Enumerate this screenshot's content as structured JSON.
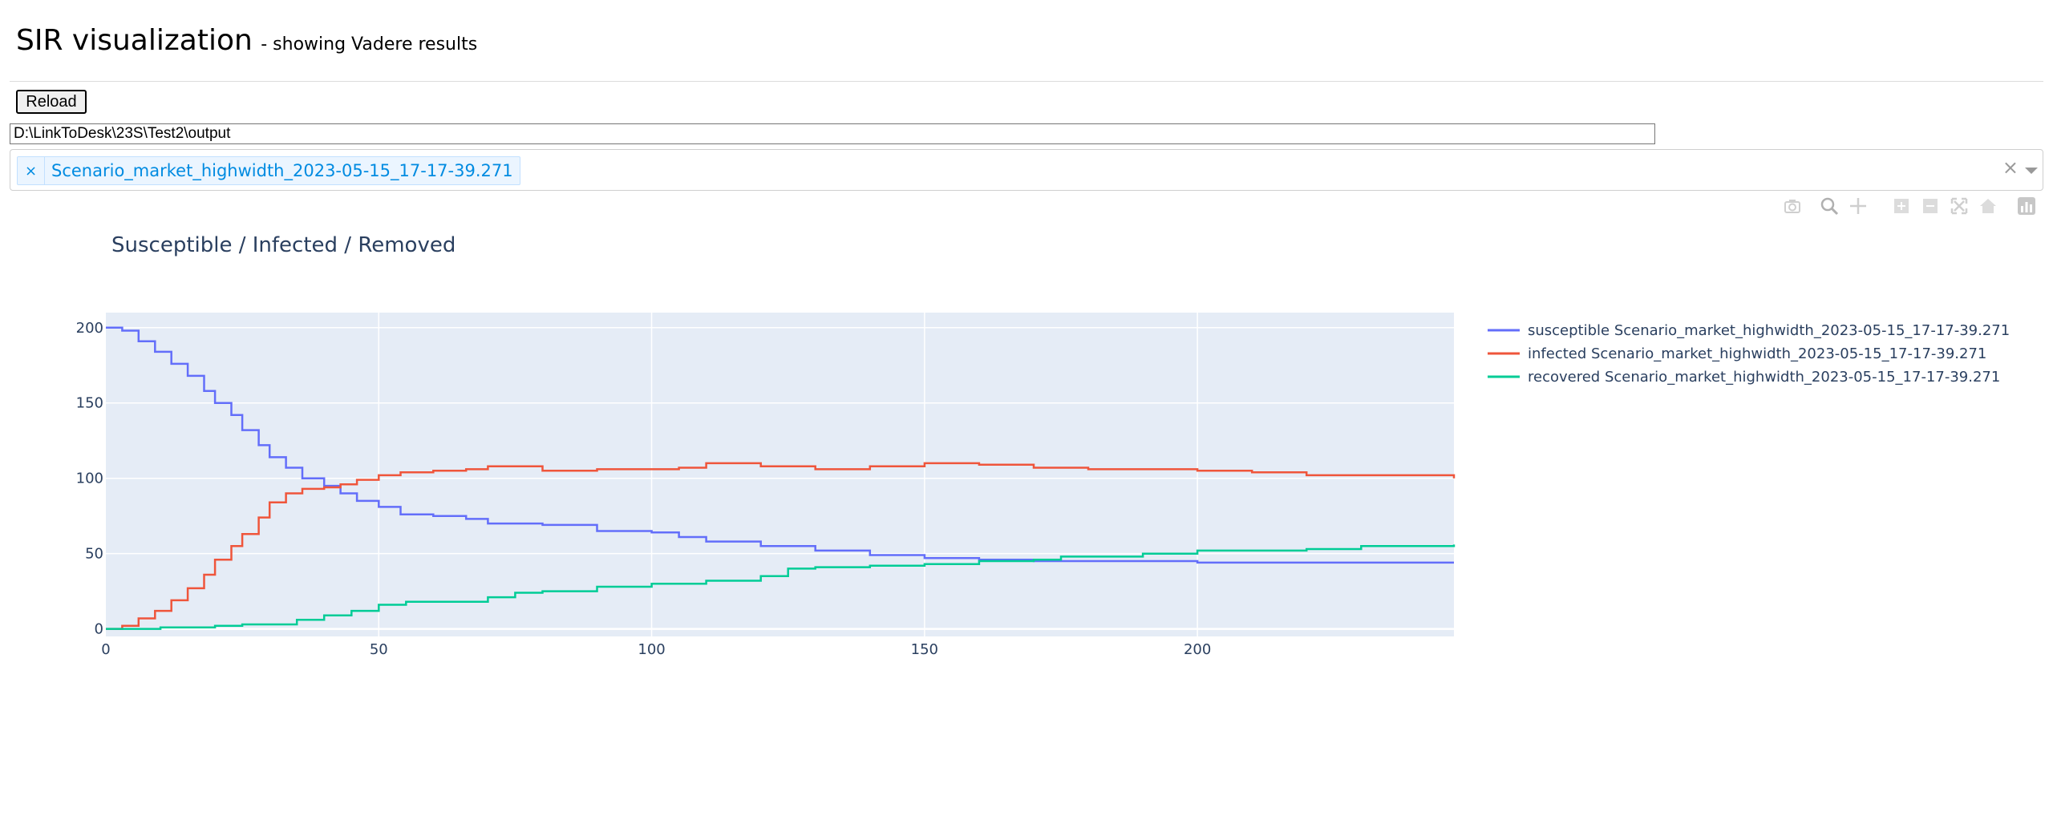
{
  "header": {
    "title": "SIR visualization",
    "subtitle": "- showing Vadere results"
  },
  "controls": {
    "reload_label": "Reload",
    "path_value": "D:\\LinkToDesk\\23S\\Test2\\output",
    "selected_scenario": "Scenario_market_highwidth_2023-05-15_17-17-39.271",
    "tag_remove_glyph": "×",
    "clear_glyph": "×"
  },
  "modebar": {
    "icons": [
      "camera-icon",
      "zoom-icon",
      "pan-icon",
      "zoom-in-icon",
      "zoom-out-icon",
      "autoscale-icon",
      "reset-axes-icon",
      "plotly-logo-icon"
    ]
  },
  "chart_data": {
    "type": "line",
    "title": "Susceptible / Infected / Removed",
    "xlabel": "",
    "ylabel": "",
    "xlim": [
      0,
      247
    ],
    "ylim": [
      -5,
      210
    ],
    "xticks": [
      0,
      50,
      100,
      150,
      200
    ],
    "yticks": [
      0,
      50,
      100,
      150,
      200
    ],
    "grid": true,
    "plot_bgcolor": "#e5ecf6",
    "legend_position": "right",
    "series": [
      {
        "name": "susceptible Scenario_market_highwidth_2023-05-15_17-17-39.271",
        "color": "#636efa",
        "x": [
          0,
          3,
          6,
          9,
          12,
          15,
          18,
          20,
          23,
          25,
          28,
          30,
          33,
          36,
          40,
          43,
          46,
          50,
          54,
          60,
          66,
          70,
          80,
          90,
          100,
          105,
          110,
          120,
          130,
          140,
          150,
          160,
          170,
          180,
          190,
          200,
          210,
          220,
          230,
          247
        ],
        "y": [
          200,
          198,
          191,
          184,
          176,
          168,
          158,
          150,
          142,
          132,
          122,
          114,
          107,
          100,
          95,
          90,
          85,
          81,
          76,
          75,
          73,
          70,
          69,
          65,
          64,
          61,
          58,
          55,
          52,
          49,
          47,
          46,
          45,
          45,
          45,
          44,
          44,
          44,
          44,
          44
        ]
      },
      {
        "name": "infected Scenario_market_highwidth_2023-05-15_17-17-39.271",
        "color": "#ef553b",
        "x": [
          0,
          3,
          6,
          9,
          12,
          15,
          18,
          20,
          23,
          25,
          28,
          30,
          33,
          36,
          40,
          43,
          46,
          50,
          54,
          60,
          66,
          70,
          80,
          90,
          100,
          105,
          110,
          120,
          130,
          140,
          150,
          160,
          170,
          180,
          190,
          200,
          210,
          220,
          230,
          247
        ],
        "y": [
          0,
          2,
          7,
          12,
          19,
          27,
          36,
          46,
          55,
          63,
          74,
          84,
          90,
          93,
          94,
          96,
          99,
          102,
          104,
          105,
          106,
          108,
          105,
          106,
          106,
          107,
          110,
          108,
          106,
          108,
          110,
          109,
          107,
          106,
          106,
          105,
          104,
          102,
          102,
          100
        ]
      },
      {
        "name": "recovered Scenario_market_highwidth_2023-05-15_17-17-39.271",
        "color": "#00cc96",
        "x": [
          0,
          5,
          10,
          15,
          20,
          25,
          30,
          35,
          40,
          45,
          50,
          55,
          60,
          70,
          75,
          80,
          90,
          100,
          110,
          120,
          125,
          130,
          140,
          150,
          160,
          170,
          175,
          180,
          190,
          200,
          210,
          220,
          230,
          247
        ],
        "y": [
          0,
          0,
          1,
          1,
          2,
          3,
          3,
          6,
          9,
          12,
          16,
          18,
          18,
          21,
          24,
          25,
          28,
          30,
          32,
          35,
          40,
          41,
          42,
          43,
          45,
          46,
          48,
          48,
          50,
          52,
          52,
          53,
          55,
          56
        ]
      }
    ]
  }
}
